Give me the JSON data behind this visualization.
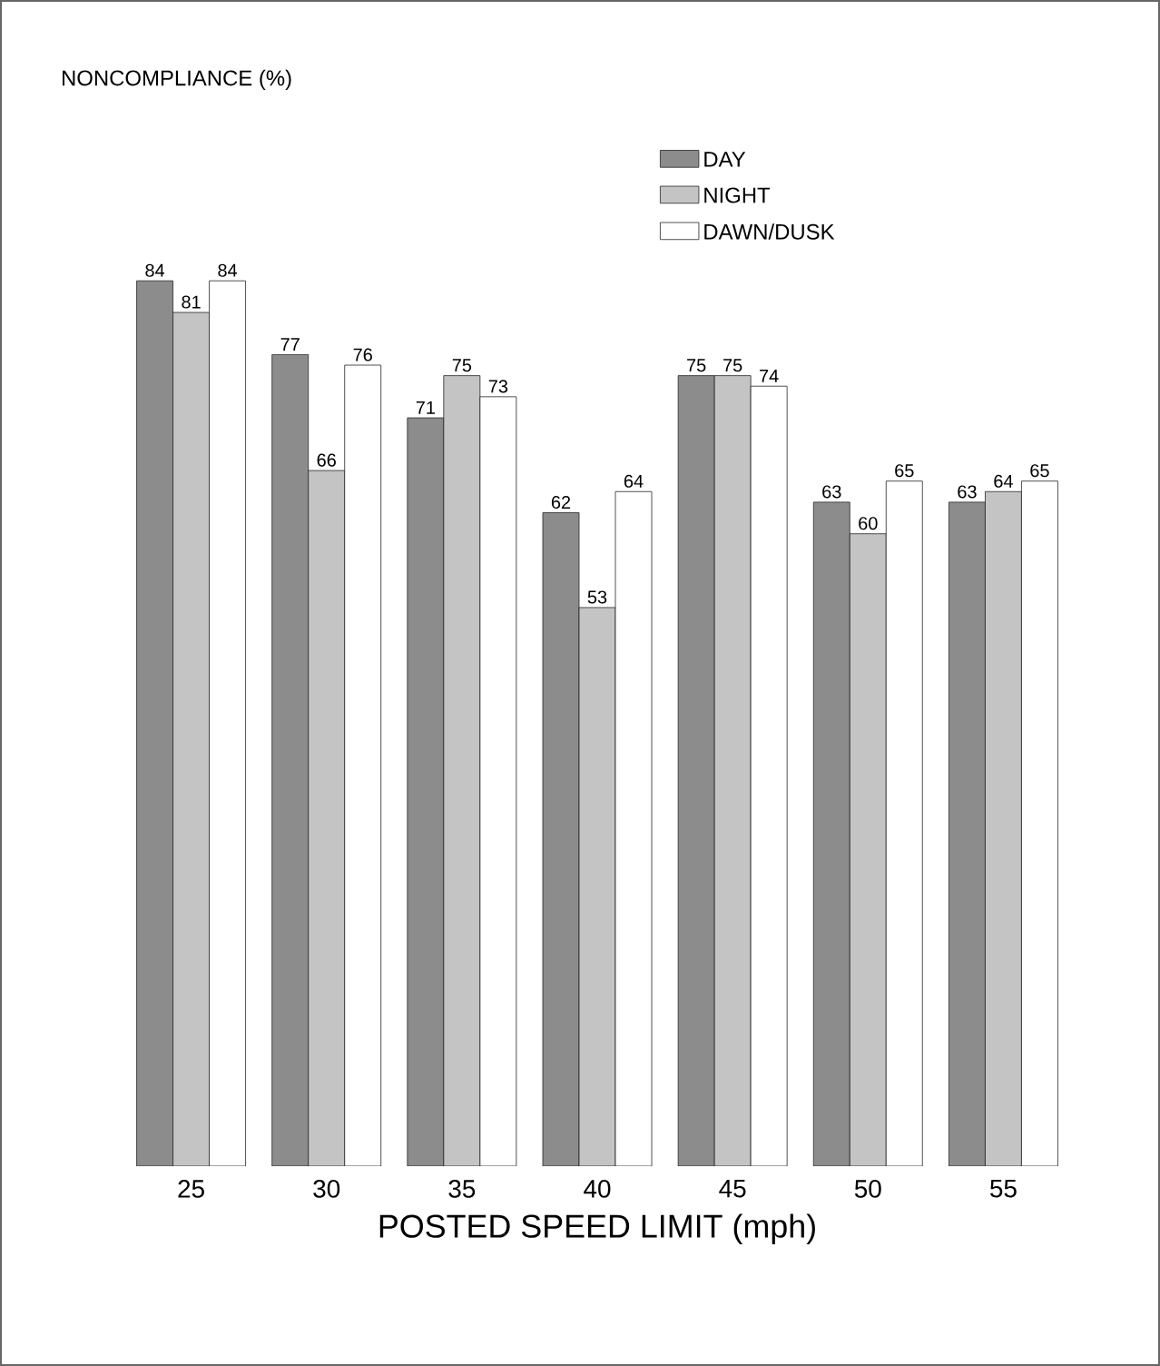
{
  "chart_data": {
    "type": "bar",
    "title": "NONCOMPLIANCE (%)",
    "xlabel": "POSTED SPEED LIMIT (mph)",
    "categories": [
      "25",
      "30",
      "35",
      "40",
      "45",
      "50",
      "55"
    ],
    "series": [
      {
        "name": "DAY",
        "color": "#8c8c8c",
        "values": [
          84,
          77,
          71,
          62,
          75,
          63,
          63
        ]
      },
      {
        "name": "NIGHT",
        "color": "#c4c4c4",
        "values": [
          81,
          66,
          75,
          53,
          75,
          60,
          64
        ]
      },
      {
        "name": "DAWN/DUSK",
        "color": "#ffffff",
        "values": [
          84,
          76,
          73,
          64,
          74,
          65,
          65
        ]
      }
    ],
    "data_labels": true,
    "legend": "top right",
    "tick_labels": "x"
  }
}
